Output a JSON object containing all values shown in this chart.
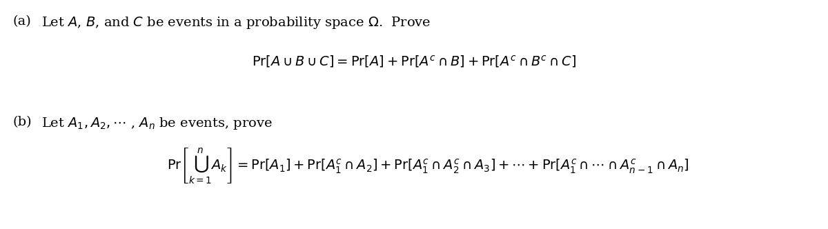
{
  "background_color": "#ffffff",
  "figsize": [
    12.0,
    3.32
  ],
  "dpi": 100,
  "text_color": "#000000",
  "part_a_label": "(a)",
  "part_a_text": "Let $A$, $B$, and $C$ be events in a probability space $\\Omega$.  Prove",
  "part_a_eq": "$\\mathrm{Pr}[A \\cup B \\cup C] = \\mathrm{Pr}[A] + \\mathrm{Pr}[A^c \\cap B] + \\mathrm{Pr}[A^c \\cap B^c \\cap C]$",
  "part_b_label": "(b)",
  "part_b_text": "Let $A_1, A_2, \\cdots$ , $A_n$ be events, prove",
  "part_b_eq": "$\\mathrm{Pr}\\left[\\bigcup_{k=1}^{n} A_k\\right] = \\mathrm{Pr}[A_1] + \\mathrm{Pr}[A_1^c \\cap A_2] + \\mathrm{Pr}[A_1^c \\cap A_2^c \\cap A_3] + \\cdots + \\mathrm{Pr}[A_1^c \\cap \\cdots \\cap A_{n-1}^c \\cap A_n]$",
  "fontsize": 14
}
